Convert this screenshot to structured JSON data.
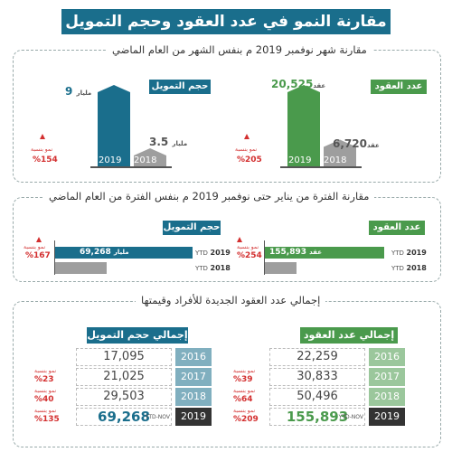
{
  "title": "مقارنة النمو في عدد العقود وحجم التمويل",
  "section1": {
    "title": "مقارنة شهر نوفمبر 2019 م بنفس الشهر من العام الماضي",
    "contracts": {
      "label": "عدد العقود",
      "v2019": "20,525",
      "v2018": "6,720",
      "unit": "عقد",
      "year2019": "2019",
      "year2018": "2018",
      "growth_label": "نمو بنسبة",
      "growth": "%205"
    },
    "finance": {
      "label": "حجم التمويل",
      "v2019": "9",
      "v2018": "3.5",
      "unit": "مليار",
      "year2019": "2019",
      "year2018": "2018",
      "growth_label": "نمو بنسبة",
      "growth": "%154"
    }
  },
  "section2": {
    "title": "مقارنة الفترة من يناير حتى نوفمبر 2019 م بنفس الفترة من العام الماضي",
    "contracts": {
      "label": "عدد العقود",
      "v2019": "155,893",
      "v2018": "44,021",
      "unit": "عقد",
      "ytd": "YTD",
      "year2019": "2019",
      "year2018": "2018",
      "growth_label": "نمو بنسبة",
      "growth": "%254"
    },
    "finance": {
      "label": "حجم التمويل",
      "v2019": "69,268",
      "v2018": "25,897",
      "unit": "مليار",
      "ytd": "YTD",
      "year2019": "2019",
      "year2018": "2018",
      "growth_label": "نمو بنسبة",
      "growth": "%167"
    }
  },
  "section3": {
    "title": "إجمالي عدد العقود الجديدة للأفراد وقيمتها",
    "contracts": {
      "label": "إجمالي عدد العقود",
      "rows": [
        {
          "year": "2016",
          "value": "22,259",
          "growth_label": "",
          "growth": ""
        },
        {
          "year": "2017",
          "value": "30,833",
          "growth_label": "نمو بنسبة",
          "growth": "%39"
        },
        {
          "year": "2018",
          "value": "50,496",
          "growth_label": "نمو بنسبة",
          "growth": "%64"
        },
        {
          "year": "2019",
          "value": "155,893",
          "growth_label": "نمو بنسبة",
          "growth": "%209",
          "ytd": "YTD-NOV"
        }
      ]
    },
    "finance": {
      "label": "إجمالي حجم التمويل",
      "rows": [
        {
          "year": "2016",
          "value": "17,095",
          "growth_label": "",
          "growth": ""
        },
        {
          "year": "2017",
          "value": "21,025",
          "growth_label": "نمو بنسبة",
          "growth": "%23"
        },
        {
          "year": "2018",
          "value": "29,503",
          "growth_label": "نمو بنسبة",
          "growth": "%40"
        },
        {
          "year": "2019",
          "value": "69,268",
          "growth_label": "نمو بنسبة",
          "growth": "%135",
          "ytd": "YTD-NOV"
        }
      ]
    }
  },
  "colors": {
    "green": "#4a9a4c",
    "blue": "#1a6e8c",
    "gray": "#9e9e9e",
    "red": "#d32f2f"
  },
  "chart_data": [
    {
      "type": "bar",
      "title": "عدد العقود",
      "categories": [
        "2018",
        "2019"
      ],
      "values": [
        6720,
        20525
      ]
    },
    {
      "type": "bar",
      "title": "حجم التمويل",
      "categories": [
        "2018",
        "2019"
      ],
      "values": [
        3.5,
        9
      ]
    },
    {
      "type": "bar",
      "title": "عدد العقود",
      "categories": [
        "2018",
        "2019"
      ],
      "values": [
        44021,
        155893
      ]
    },
    {
      "type": "bar",
      "title": "حجم التمويل",
      "categories": [
        "2018",
        "2019"
      ],
      "values": [
        25897,
        69268
      ]
    },
    {
      "type": "table",
      "title": "إجمالي عدد العقود",
      "categories": [
        "2016",
        "2017",
        "2018",
        "2019"
      ],
      "values": [
        22259,
        30833,
        50496,
        155893
      ]
    },
    {
      "type": "table",
      "title": "إجمالي حجم التمويل",
      "categories": [
        "2016",
        "2017",
        "2018",
        "2019"
      ],
      "values": [
        17095,
        21025,
        29503,
        69268
      ]
    }
  ]
}
